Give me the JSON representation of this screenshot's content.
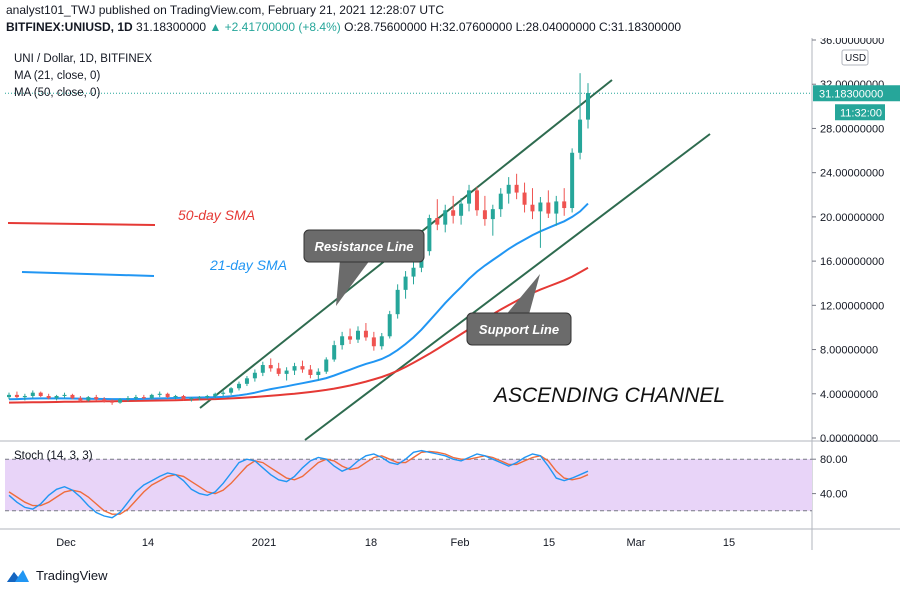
{
  "header": {
    "publish_line": "analyst101_TWJ published on TradingView.com, February 21, 2021 12:28:07 UTC",
    "symbol_full": "BITFINEX:UNIUSD, 1D",
    "last": "31.18300000",
    "change": "▲ +2.41700000 (+8.4%)",
    "ohlc": "O:28.75600000 H:32.07600000 L:28.04000000 C:31.18300000"
  },
  "legend": {
    "title": "UNI / Dollar, 1D, BITFINEX",
    "ma21": "MA (21, close, 0)",
    "ma50": "MA (50, close, 0)",
    "stoch": "Stoch (14, 3, 3)"
  },
  "annotations": {
    "sma50": "50-day SMA",
    "sma21": "21-day SMA",
    "resistance": "Resistance Line",
    "support": "Support Line",
    "channel": "ASCENDING CHANNEL"
  },
  "price_axis": {
    "currency": "USD",
    "ticks": [
      "36.00000000",
      "32.00000000",
      "28.00000000",
      "24.00000000",
      "20.00000000",
      "16.00000000",
      "12.00000000",
      "8.00000000",
      "4.00000000",
      "0.00000000"
    ],
    "last_price_label": "31.18300000",
    "countdown_label": "11:32:00"
  },
  "stoch_axis": {
    "ticks": [
      "80.00",
      "40.00"
    ]
  },
  "time_axis": [
    "Dec",
    "14",
    "2021",
    "18",
    "Feb",
    "15",
    "Mar",
    "15"
  ],
  "footer": {
    "brand": "TradingView"
  },
  "colors": {
    "up": "#26a69a",
    "down": "#ef5350",
    "ma21": "#2196f3",
    "ma50": "#e53935",
    "channel": "#2e6b4f",
    "stoch_k": "#2196f3",
    "stoch_d": "#ef6c3c",
    "stoch_bg": "#e8d4f8",
    "callout": "#6b6b6b"
  },
  "chart_data": {
    "type": "candlestick",
    "ylim": [
      0,
      36
    ],
    "candles_ohlc": [
      [
        3.7,
        4.1,
        3.5,
        3.9
      ],
      [
        3.9,
        4.2,
        3.6,
        3.7
      ],
      [
        3.7,
        4.0,
        3.4,
        3.8
      ],
      [
        3.8,
        4.3,
        3.6,
        4.1
      ],
      [
        4.1,
        4.2,
        3.7,
        3.8
      ],
      [
        3.8,
        4.0,
        3.5,
        3.6
      ],
      [
        3.6,
        3.9,
        3.4,
        3.8
      ],
      [
        3.8,
        4.1,
        3.6,
        3.9
      ],
      [
        3.9,
        4.0,
        3.5,
        3.6
      ],
      [
        3.6,
        3.8,
        3.2,
        3.4
      ],
      [
        3.4,
        3.8,
        3.3,
        3.7
      ],
      [
        3.7,
        3.9,
        3.4,
        3.5
      ],
      [
        3.5,
        3.7,
        3.2,
        3.3
      ],
      [
        3.3,
        3.5,
        3.0,
        3.2
      ],
      [
        3.2,
        3.6,
        3.1,
        3.5
      ],
      [
        3.5,
        3.8,
        3.3,
        3.6
      ],
      [
        3.6,
        3.9,
        3.4,
        3.7
      ],
      [
        3.7,
        3.9,
        3.5,
        3.6
      ],
      [
        3.6,
        4.0,
        3.5,
        3.9
      ],
      [
        3.9,
        4.2,
        3.7,
        4.0
      ],
      [
        4.0,
        4.1,
        3.6,
        3.7
      ],
      [
        3.7,
        3.9,
        3.5,
        3.8
      ],
      [
        3.8,
        3.9,
        3.4,
        3.5
      ],
      [
        3.5,
        3.7,
        3.3,
        3.6
      ],
      [
        3.6,
        3.8,
        3.4,
        3.7
      ],
      [
        3.7,
        3.9,
        3.5,
        3.8
      ],
      [
        3.8,
        4.1,
        3.6,
        4.0
      ],
      [
        4.0,
        4.3,
        3.8,
        4.1
      ],
      [
        4.1,
        4.6,
        3.9,
        4.5
      ],
      [
        4.5,
        5.1,
        4.3,
        4.9
      ],
      [
        4.9,
        5.6,
        4.7,
        5.4
      ],
      [
        5.4,
        6.2,
        5.1,
        5.9
      ],
      [
        5.9,
        6.9,
        5.6,
        6.6
      ],
      [
        6.6,
        7.2,
        6.0,
        6.3
      ],
      [
        6.3,
        6.8,
        5.6,
        5.8
      ],
      [
        5.8,
        6.4,
        5.2,
        6.1
      ],
      [
        6.1,
        6.8,
        5.7,
        6.5
      ],
      [
        6.5,
        7.0,
        5.9,
        6.2
      ],
      [
        6.2,
        6.6,
        5.4,
        5.7
      ],
      [
        5.7,
        6.3,
        5.2,
        6.0
      ],
      [
        6.0,
        7.3,
        5.8,
        7.1
      ],
      [
        7.1,
        8.8,
        6.9,
        8.4
      ],
      [
        8.4,
        9.6,
        8.0,
        9.2
      ],
      [
        9.2,
        9.9,
        8.5,
        8.9
      ],
      [
        8.9,
        10.1,
        8.6,
        9.7
      ],
      [
        9.7,
        10.4,
        8.8,
        9.1
      ],
      [
        9.1,
        9.6,
        7.9,
        8.3
      ],
      [
        8.3,
        9.5,
        8.0,
        9.2
      ],
      [
        9.2,
        11.5,
        9.0,
        11.2
      ],
      [
        11.2,
        13.9,
        10.8,
        13.4
      ],
      [
        13.4,
        15.1,
        12.6,
        14.6
      ],
      [
        14.6,
        16.0,
        13.9,
        15.4
      ],
      [
        15.4,
        17.3,
        15.0,
        16.9
      ],
      [
        16.9,
        20.2,
        16.5,
        19.9
      ],
      [
        19.9,
        21.6,
        18.8,
        19.3
      ],
      [
        19.3,
        21.1,
        18.6,
        20.6
      ],
      [
        20.6,
        21.9,
        19.4,
        20.1
      ],
      [
        20.1,
        21.7,
        19.3,
        21.2
      ],
      [
        21.2,
        22.9,
        20.5,
        22.4
      ],
      [
        22.4,
        22.7,
        20.1,
        20.6
      ],
      [
        20.6,
        21.9,
        19.2,
        19.8
      ],
      [
        19.8,
        21.1,
        18.3,
        20.7
      ],
      [
        20.7,
        22.6,
        20.0,
        22.1
      ],
      [
        22.1,
        23.6,
        21.2,
        22.9
      ],
      [
        22.9,
        23.9,
        21.6,
        22.2
      ],
      [
        22.2,
        23.1,
        20.4,
        21.1
      ],
      [
        21.1,
        22.6,
        19.8,
        20.5
      ],
      [
        20.5,
        21.8,
        17.2,
        21.3
      ],
      [
        21.3,
        22.4,
        19.9,
        20.3
      ],
      [
        20.3,
        21.9,
        19.2,
        21.4
      ],
      [
        21.4,
        22.6,
        20.1,
        20.8
      ],
      [
        20.8,
        26.2,
        20.4,
        25.8
      ],
      [
        25.8,
        33.0,
        25.2,
        28.8
      ],
      [
        28.8,
        32.1,
        28.0,
        31.2
      ]
    ],
    "ma21": [
      3.5,
      3.52,
      3.55,
      3.57,
      3.58,
      3.58,
      3.58,
      3.58,
      3.57,
      3.56,
      3.55,
      3.54,
      3.53,
      3.52,
      3.52,
      3.52,
      3.53,
      3.54,
      3.56,
      3.58,
      3.6,
      3.62,
      3.64,
      3.65,
      3.66,
      3.67,
      3.69,
      3.72,
      3.77,
      3.85,
      3.96,
      4.1,
      4.27,
      4.42,
      4.55,
      4.68,
      4.82,
      4.96,
      5.1,
      5.25,
      5.42,
      5.65,
      5.92,
      6.18,
      6.45,
      6.7,
      6.9,
      7.15,
      7.5,
      7.95,
      8.5,
      9.1,
      9.8,
      10.6,
      11.4,
      12.2,
      12.95,
      13.65,
      14.4,
      15.05,
      15.6,
      16.1,
      16.6,
      17.1,
      17.55,
      17.95,
      18.35,
      18.7,
      19.0,
      19.3,
      19.6,
      20.0,
      20.5,
      21.2
    ],
    "ma50": [
      3.2,
      3.21,
      3.22,
      3.23,
      3.24,
      3.25,
      3.26,
      3.27,
      3.28,
      3.29,
      3.3,
      3.31,
      3.32,
      3.33,
      3.34,
      3.35,
      3.36,
      3.37,
      3.38,
      3.39,
      3.4,
      3.42,
      3.44,
      3.46,
      3.48,
      3.5,
      3.52,
      3.55,
      3.58,
      3.62,
      3.66,
      3.71,
      3.76,
      3.82,
      3.88,
      3.94,
      4.0,
      4.08,
      4.16,
      4.25,
      4.35,
      4.47,
      4.6,
      4.75,
      4.92,
      5.1,
      5.3,
      5.52,
      5.78,
      6.08,
      6.42,
      6.8,
      7.2,
      7.62,
      8.05,
      8.5,
      8.95,
      9.4,
      9.85,
      10.3,
      10.75,
      11.2,
      11.62,
      12.02,
      12.4,
      12.78,
      13.12,
      13.42,
      13.7,
      13.98,
      14.26,
      14.6,
      15.0,
      15.4
    ],
    "stoch_k": [
      38,
      30,
      24,
      22,
      28,
      38,
      45,
      48,
      44,
      36,
      26,
      18,
      14,
      12,
      18,
      30,
      42,
      50,
      55,
      60,
      64,
      62,
      55,
      45,
      40,
      38,
      42,
      52,
      64,
      76,
      80,
      78,
      70,
      62,
      56,
      54,
      60,
      70,
      78,
      82,
      80,
      72,
      66,
      70,
      78,
      84,
      86,
      82,
      76,
      74,
      80,
      88,
      90,
      88,
      86,
      84,
      80,
      78,
      82,
      86,
      84,
      80,
      76,
      72,
      76,
      82,
      86,
      84,
      72,
      58,
      55,
      58,
      62,
      66
    ],
    "stoch_d": [
      42,
      36,
      30,
      26,
      26,
      30,
      36,
      42,
      44,
      42,
      36,
      28,
      20,
      16,
      16,
      22,
      32,
      42,
      50,
      55,
      60,
      62,
      60,
      54,
      48,
      42,
      40,
      44,
      52,
      62,
      72,
      78,
      76,
      70,
      64,
      58,
      56,
      60,
      68,
      76,
      80,
      78,
      72,
      68,
      70,
      76,
      82,
      84,
      80,
      76,
      76,
      82,
      88,
      89,
      88,
      86,
      82,
      80,
      80,
      82,
      84,
      82,
      78,
      74,
      74,
      78,
      82,
      84,
      78,
      66,
      58,
      56,
      58,
      62
    ]
  }
}
